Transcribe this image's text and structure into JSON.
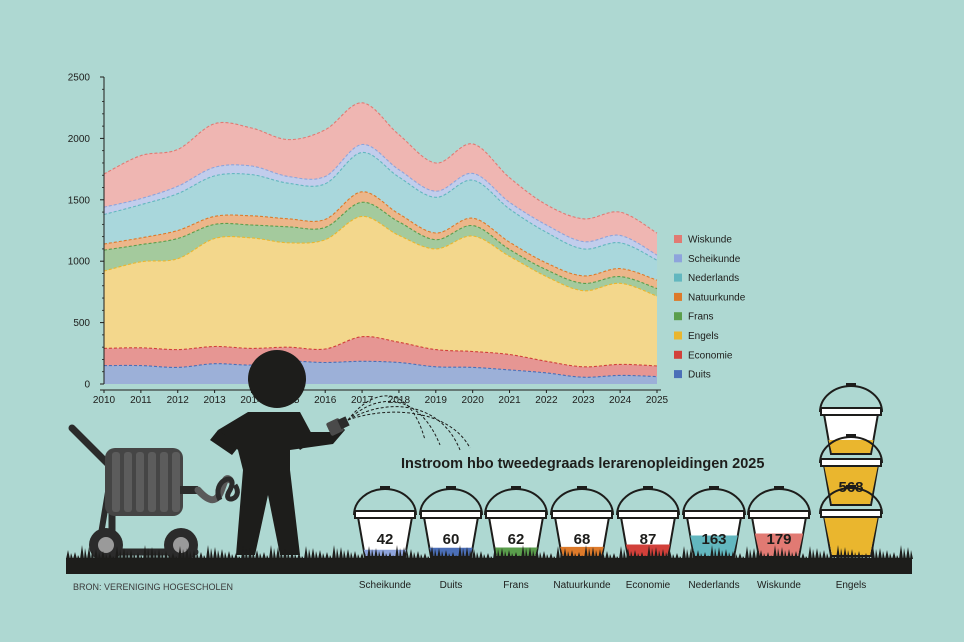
{
  "source": "BRON: VERENIGING HOGESCHOLEN",
  "colors": {
    "background": "#aed8d2",
    "Duits": "#4b6fb8",
    "Economie": "#d2403a",
    "Engels": "#eab62e",
    "Frans": "#5a9e4c",
    "Natuurkunde": "#dd7a2a",
    "Nederlands": "#62b7bf",
    "Scheikunde": "#8ea4dc",
    "Wiskunde": "#e17a73"
  },
  "chart_data": [
    {
      "type": "area",
      "stacked": true,
      "title": "",
      "xlabel": "",
      "ylabel": "",
      "x": [
        2010,
        2011,
        2012,
        2013,
        2014,
        2015,
        2016,
        2017,
        2018,
        2019,
        2020,
        2021,
        2022,
        2023,
        2024,
        2025
      ],
      "x_ticks": [
        "2010",
        "2011",
        "2012",
        "2013",
        "2014",
        "2015",
        "2016",
        "2017",
        "2018",
        "2019",
        "2020",
        "2021",
        "2022",
        "2023",
        "2024",
        "2025"
      ],
      "y_ticks": [
        "0",
        "500",
        "1000",
        "1500",
        "2000",
        "2500"
      ],
      "ylim": [
        0,
        2500
      ],
      "legend_position": "right",
      "series": [
        {
          "name": "Duits",
          "values": [
            150,
            150,
            135,
            165,
            155,
            185,
            175,
            185,
            175,
            140,
            135,
            115,
            90,
            55,
            70,
            60
          ]
        },
        {
          "name": "Economie",
          "values": [
            140,
            145,
            145,
            140,
            135,
            115,
            110,
            200,
            165,
            140,
            130,
            125,
            95,
            85,
            90,
            87
          ]
        },
        {
          "name": "Engels",
          "values": [
            630,
            700,
            740,
            880,
            900,
            850,
            890,
            980,
            870,
            820,
            940,
            800,
            690,
            620,
            660,
            568
          ]
        },
        {
          "name": "Frans",
          "values": [
            170,
            140,
            165,
            115,
            105,
            130,
            100,
            115,
            110,
            75,
            85,
            55,
            55,
            60,
            55,
            62
          ]
        },
        {
          "name": "Natuurkunde",
          "values": [
            50,
            55,
            65,
            65,
            75,
            65,
            65,
            85,
            65,
            55,
            60,
            60,
            55,
            60,
            65,
            68
          ]
        },
        {
          "name": "Nederlands",
          "values": [
            240,
            270,
            300,
            330,
            335,
            290,
            290,
            320,
            300,
            290,
            310,
            270,
            250,
            220,
            210,
            163
          ]
        },
        {
          "name": "Scheikunde",
          "values": [
            60,
            50,
            60,
            70,
            70,
            55,
            60,
            65,
            60,
            50,
            55,
            55,
            60,
            60,
            60,
            42
          ]
        },
        {
          "name": "Wiskunde",
          "values": [
            270,
            350,
            300,
            355,
            310,
            300,
            380,
            340,
            285,
            230,
            240,
            200,
            165,
            185,
            190,
            179
          ]
        }
      ]
    },
    {
      "type": "bar",
      "title": "Instroom hbo tweedegraads lerarenopleidingen 2025",
      "categories": [
        "Scheikunde",
        "Duits",
        "Frans",
        "Natuurkunde",
        "Economie",
        "Nederlands",
        "Wiskunde",
        "Engels"
      ],
      "values": [
        42,
        60,
        62,
        68,
        87,
        163,
        179,
        568
      ]
    }
  ]
}
